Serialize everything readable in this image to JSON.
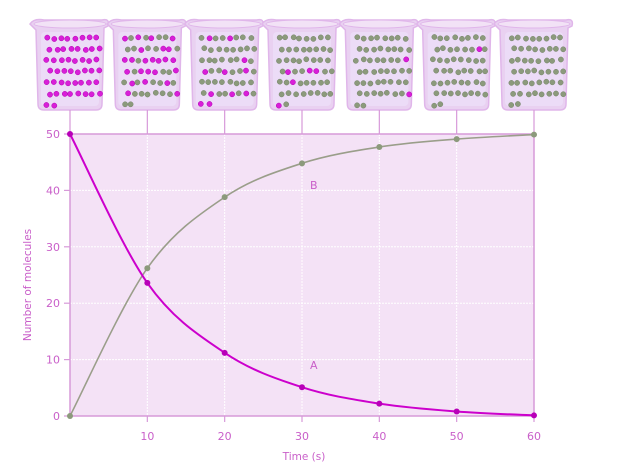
{
  "chart_data": {
    "type": "line",
    "title": "",
    "xlabel": "Time (s)",
    "ylabel": "Number of molecules",
    "x": [
      0,
      10,
      20,
      30,
      40,
      50,
      60
    ],
    "x_ticks": [
      10,
      20,
      30,
      40,
      50,
      60
    ],
    "y_ticks": [
      0,
      10,
      20,
      30,
      40,
      50
    ],
    "xlim": [
      0,
      60
    ],
    "ylim": [
      0,
      50
    ],
    "grid": true,
    "legend": "none (series labelled inline)",
    "series": [
      {
        "name": "A",
        "color": "#cc00cc",
        "values": [
          50,
          23.6,
          11.2,
          5.1,
          2.2,
          0.8,
          0.1
        ],
        "label_at": [
          30,
          9
        ]
      },
      {
        "name": "B",
        "color": "#9a9e8a",
        "values": [
          0,
          26.2,
          38.8,
          44.8,
          47.7,
          49.1,
          49.9
        ],
        "label_at": [
          30,
          41
        ]
      }
    ],
    "annotations": [
      {
        "type": "beaker-illustration",
        "count": 7,
        "positions_x": [
          0,
          10,
          20,
          30,
          40,
          50,
          60
        ],
        "description": "Beakers above each time point showing mixture of magenta (A) and gray-green (B) molecules; mostly A at t=0, nearly all B at t=60"
      }
    ]
  },
  "colors": {
    "plot_bg": "#f4e2f6",
    "axis": "#d79ad9",
    "text": "#c95fc9",
    "series_a": "#cc00cc",
    "series_b": "#9a9e8a",
    "beaker_glass": "#e9d1f1",
    "molecule_a": "#d81fd8",
    "molecule_b": "#8c9a7c"
  },
  "beakers": [
    {
      "time": 0,
      "a_count": 50,
      "b_count": 0
    },
    {
      "time": 10,
      "a_count": 24,
      "b_count": 26
    },
    {
      "time": 20,
      "a_count": 11,
      "b_count": 39
    },
    {
      "time": 30,
      "a_count": 5,
      "b_count": 45
    },
    {
      "time": 40,
      "a_count": 2,
      "b_count": 48
    },
    {
      "time": 50,
      "a_count": 1,
      "b_count": 49
    },
    {
      "time": 60,
      "a_count": 0,
      "b_count": 50
    }
  ]
}
